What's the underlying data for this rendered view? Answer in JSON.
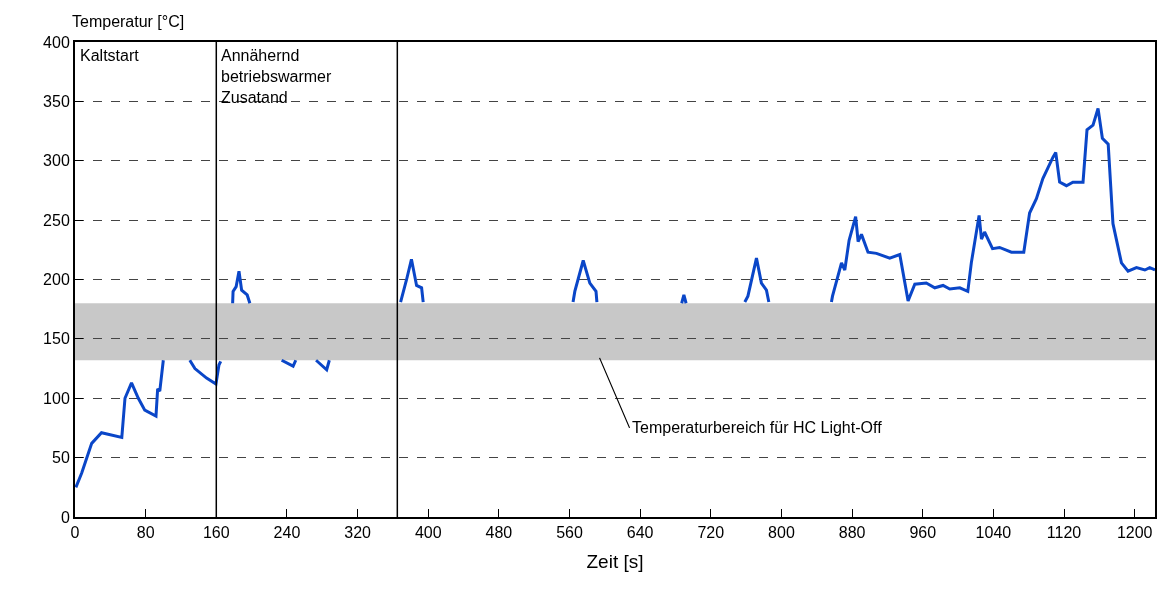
{
  "chart_data": {
    "type": "line",
    "xlabel": "Zeit [s]",
    "ylabel": "Temperatur [°C]",
    "xlim": [
      0,
      1223
    ],
    "ylim": [
      0,
      400
    ],
    "xticks": [
      0,
      80,
      160,
      240,
      320,
      400,
      480,
      560,
      640,
      720,
      800,
      880,
      960,
      1040,
      1120,
      1200
    ],
    "yticks": [
      0,
      50,
      100,
      150,
      200,
      250,
      300,
      350,
      400
    ],
    "grid": "y",
    "marker": "none",
    "line_style": "solid",
    "series": [
      {
        "color": "#0a46c8",
        "x": [
          1,
          7.6,
          18.9,
          30,
          53,
          56.6,
          64,
          71.7,
          79,
          91.7,
          93.6,
          96,
          100,
          115,
          130,
          135.8,
          149,
          159.6,
          163,
          165,
          172,
          178.5,
          179,
          182.5,
          185.7,
          188.7,
          195,
          198,
          215,
          234,
          247,
          250,
          262,
          273,
          285,
          288,
          320,
          349,
          354.7,
          356,
          362,
          368.7,
          375.5,
          381,
          386.8,
          392.5,
          394.3,
          440,
          490,
          494,
          498,
          530,
          564,
          566,
          575.5,
          583,
          590,
          591,
          640,
          687,
          689.5,
          692,
          720,
          758.5,
          762,
          771.7,
          777.3,
          783,
          785.7,
          820,
          856.6,
          857.8,
          868,
          871.7,
          876.6,
          884,
          886.8,
          890.6,
          898,
          907.6,
          922.6,
          934,
          943.4,
          951,
          964,
          973.6,
          983,
          990.6,
          1002,
          1011,
          1015,
          1023.8,
          1026.5,
          1030,
          1039,
          1047,
          1060.4,
          1074.4,
          1081,
          1088.7,
          1096,
          1107.5,
          1110.6,
          1115,
          1122.7,
          1130,
          1141.5,
          1146,
          1152.8,
          1158.5,
          1163.4,
          1170,
          1175.4,
          1185,
          1192.5,
          1202,
          1211.5,
          1217,
          1223
        ],
        "values": [
          25,
          37,
          62,
          71,
          67,
          100,
          113,
          100,
          90,
          85,
          108,
          106,
          132,
          null,
          132,
          125,
          117,
          112,
          128,
          131,
          null,
          180,
          190,
          194,
          207,
          191,
          187,
          180,
          null,
          132,
          127,
          132,
          null,
          132,
          124,
          132,
          null,
          null,
          null,
          null,
          null,
          181,
          200,
          217,
          195,
          193,
          181,
          null,
          null,
          null,
          null,
          null,
          181,
          190,
          216,
          197,
          190,
          181,
          null,
          180,
          187,
          180,
          null,
          181,
          186,
          218,
          197,
          191,
          181,
          null,
          181,
          186,
          214,
          208,
          233,
          253,
          232,
          238,
          223,
          222,
          218,
          221,
          182,
          196,
          197,
          193,
          195,
          192,
          193,
          190,
          214,
          254,
          234,
          240,
          226,
          227,
          223,
          223,
          256,
          268,
          285,
          303,
          307,
          282,
          279,
          282,
          282,
          326,
          330,
          344,
          319,
          314,
          247,
          214,
          207,
          210,
          208,
          210,
          208
        ]
      }
    ],
    "ref_lines": [
      {
        "axis": "x",
        "value": 160,
        "color": "#000000",
        "line_style": "solid"
      },
      {
        "axis": "x",
        "value": 365,
        "color": "#000000",
        "line_style": "solid"
      }
    ],
    "bands": [
      {
        "axis": "y",
        "from": 132,
        "to": 180,
        "color": "#c8c8c8"
      }
    ],
    "annotations": [
      "Kaltstart",
      "Annähernd\nbetriebswarmer\nZusatand",
      {
        "text": "Temperaturbereich für HC Light-Off",
        "x": 594,
        "y": 134
      }
    ]
  }
}
